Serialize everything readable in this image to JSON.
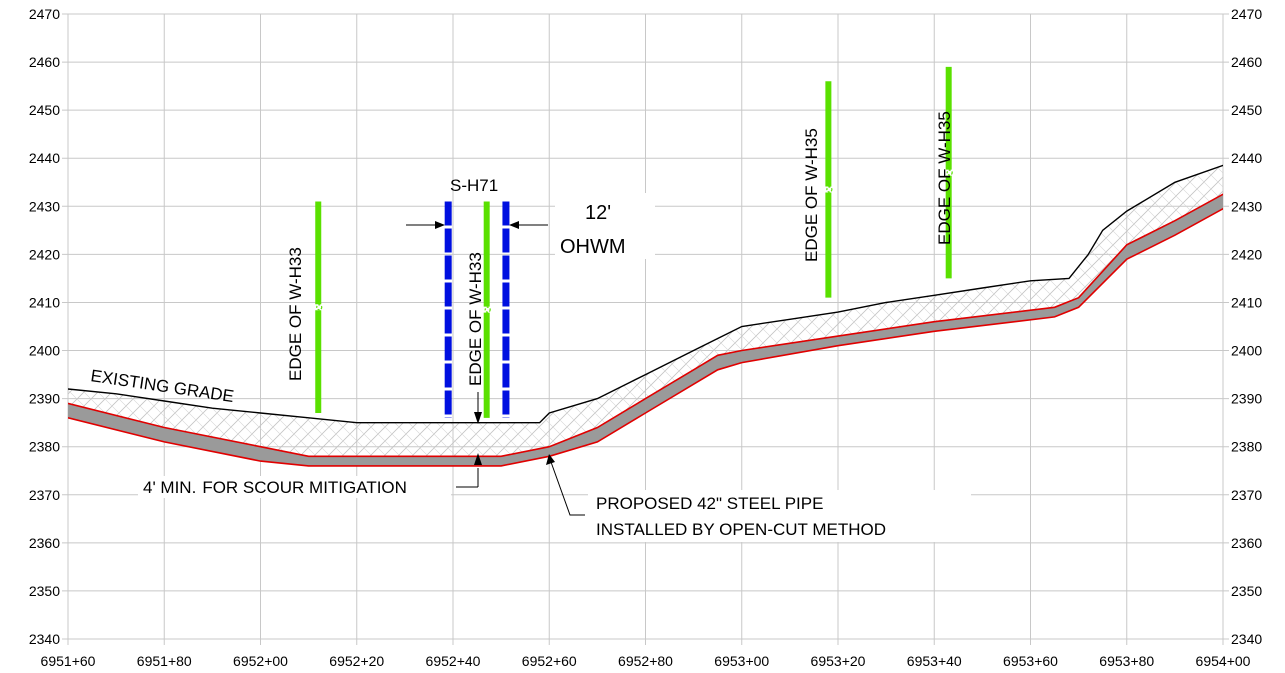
{
  "chart_data": {
    "type": "line",
    "description_free": true,
    "x_axis": {
      "min": 695160,
      "max": 695400,
      "step": 20,
      "tick_labels": [
        "6951+60",
        "6951+80",
        "6952+00",
        "6952+20",
        "6952+40",
        "6952+60",
        "6952+80",
        "6953+00",
        "6953+20",
        "6953+40",
        "6953+60",
        "6953+80",
        "6954+00"
      ]
    },
    "y_axis": {
      "min": 2340,
      "max": 2470,
      "step": 10,
      "tick_labels": [
        "2340",
        "2350",
        "2360",
        "2370",
        "2380",
        "2390",
        "2400",
        "2410",
        "2420",
        "2430",
        "2440",
        "2450",
        "2460",
        "2470"
      ]
    },
    "grid": true,
    "existing_grade": [
      [
        695160,
        2392
      ],
      [
        695170,
        2391
      ],
      [
        695180,
        2389.5
      ],
      [
        695190,
        2388
      ],
      [
        695200,
        2387
      ],
      [
        695210,
        2386
      ],
      [
        695220,
        2385
      ],
      [
        695232,
        2385
      ],
      [
        695240,
        2385
      ],
      [
        695250,
        2385
      ],
      [
        695258,
        2385
      ],
      [
        695260,
        2387
      ],
      [
        695270,
        2390
      ],
      [
        695280,
        2395
      ],
      [
        695290,
        2400
      ],
      [
        695295,
        2402.5
      ],
      [
        695300,
        2405
      ],
      [
        695310,
        2406.5
      ],
      [
        695320,
        2408
      ],
      [
        695330,
        2410
      ],
      [
        695340,
        2411.5
      ],
      [
        695350,
        2413
      ],
      [
        695360,
        2414.5
      ],
      [
        695368,
        2415
      ],
      [
        695372,
        2420
      ],
      [
        695375,
        2425
      ],
      [
        695380,
        2429
      ],
      [
        695390,
        2435
      ],
      [
        695400,
        2438.5
      ],
      [
        695410,
        2441.5
      ]
    ],
    "pipe_top": [
      [
        695160,
        2389
      ],
      [
        695180,
        2384
      ],
      [
        695200,
        2380
      ],
      [
        695210,
        2378
      ],
      [
        695220,
        2378
      ],
      [
        695250,
        2378
      ],
      [
        695260,
        2380
      ],
      [
        695270,
        2384
      ],
      [
        695280,
        2390
      ],
      [
        695290,
        2396
      ],
      [
        695295,
        2399
      ],
      [
        695300,
        2400
      ],
      [
        695320,
        2403
      ],
      [
        695340,
        2406
      ],
      [
        695365,
        2409
      ],
      [
        695370,
        2411
      ],
      [
        695380,
        2422
      ],
      [
        695390,
        2427
      ],
      [
        695410,
        2438
      ]
    ],
    "pipe_bottom": [
      [
        695160,
        2386
      ],
      [
        695180,
        2381
      ],
      [
        695200,
        2377
      ],
      [
        695210,
        2376
      ],
      [
        695220,
        2376
      ],
      [
        695250,
        2376
      ],
      [
        695260,
        2378
      ],
      [
        695270,
        2381
      ],
      [
        695280,
        2387
      ],
      [
        695290,
        2393
      ],
      [
        695295,
        2396
      ],
      [
        695300,
        2397.5
      ],
      [
        695320,
        2401
      ],
      [
        695340,
        2404
      ],
      [
        695365,
        2407
      ],
      [
        695370,
        2409
      ],
      [
        695380,
        2419
      ],
      [
        695390,
        2424
      ],
      [
        695410,
        2435
      ]
    ],
    "wetland_lines": [
      {
        "label": "EDGE OF W-H33",
        "x": 695212,
        "y_top": 2431,
        "y_bottom": 2387
      },
      {
        "label": "EDGE OF W-H33",
        "x": 695247,
        "y_top": 2431,
        "y_bottom": 2386
      },
      {
        "label": "EDGE OF W-H35",
        "x": 695318,
        "y_top": 2456,
        "y_bottom": 2411
      },
      {
        "label": "EDGE OF W-H35",
        "x": 695343,
        "y_top": 2459,
        "y_bottom": 2415
      }
    ],
    "ohwm_lines": [
      {
        "x": 695239,
        "y_top": 2431,
        "y_bottom": 2386
      },
      {
        "x": 695251,
        "y_top": 2431,
        "y_bottom": 2386
      }
    ],
    "colors": {
      "grid": "#c8c8c8",
      "grade": "#000000",
      "pipe_fill": "#9a9a9a",
      "pipe_edge": "#e00000",
      "wetland": "#5ae000",
      "ohwm": "#0010e0",
      "hatch": "#c4c4c4"
    }
  },
  "labels": {
    "existing_grade": "EXISTING GRADE",
    "stream_id": "S-H71",
    "ohwm_width": "12'",
    "ohwm": "OHWM",
    "min_cover_a": "4' MIN.",
    "min_cover_b": "FOR SCOUR MITIGATION",
    "pipe_line1": "PROPOSED 42\" STEEL PIPE",
    "pipe_line2": "INSTALLED BY OPEN-CUT METHOD",
    "edge_1": "EDGE OF W-H33",
    "edge_2": "EDGE OF W-H33",
    "edge_3": "EDGE OF W-H35",
    "edge_4": "EDGE OF W-H35"
  }
}
